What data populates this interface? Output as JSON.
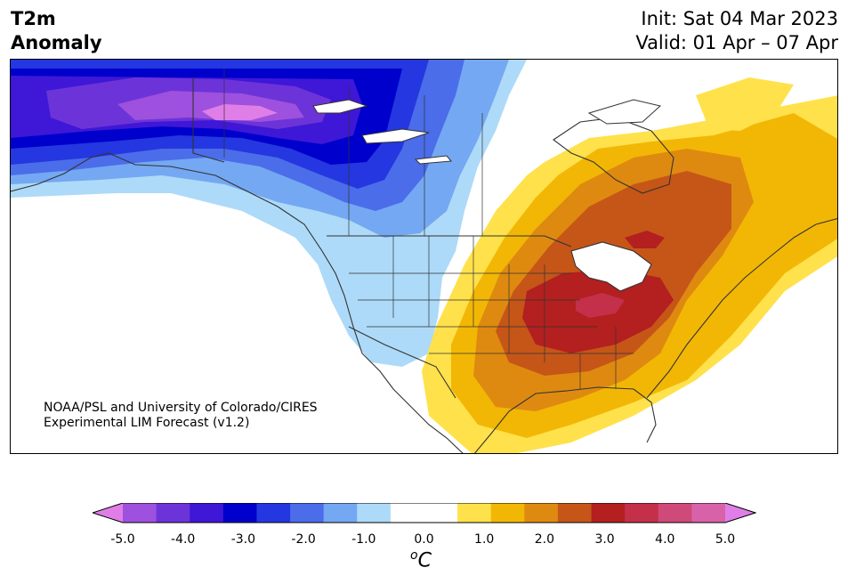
{
  "title": {
    "line1": "T2m",
    "line2": "Anomaly"
  },
  "dates": {
    "init": "Init: Sat 04 Mar 2023",
    "valid": "Valid: 01 Apr – 07 Apr"
  },
  "credit": {
    "line1": "NOAA/PSL and University of Colorado/CIRES",
    "line2": "Experimental LIM Forecast (v1.2)"
  },
  "colorbar": {
    "ticks": [
      "-5.0",
      "-4.0",
      "-3.0",
      "-2.0",
      "-1.0",
      "0.0",
      "1.0",
      "2.0",
      "3.0",
      "4.0",
      "5.0"
    ],
    "unit_base": "C",
    "unit_sup": "o",
    "colors": [
      "#e07ee8",
      "#9e50de",
      "#6c34d8",
      "#3f17d6",
      "#0000cc",
      "#2437e0",
      "#4b6de9",
      "#74a8f2",
      "#addaf8",
      "#ffffff",
      "#ffffff",
      "#ffe14b",
      "#f2b705",
      "#de8a10",
      "#c55618",
      "#b3201f",
      "#c4304a",
      "#cf4a78",
      "#d862a9",
      "#e07ee8"
    ]
  }
}
